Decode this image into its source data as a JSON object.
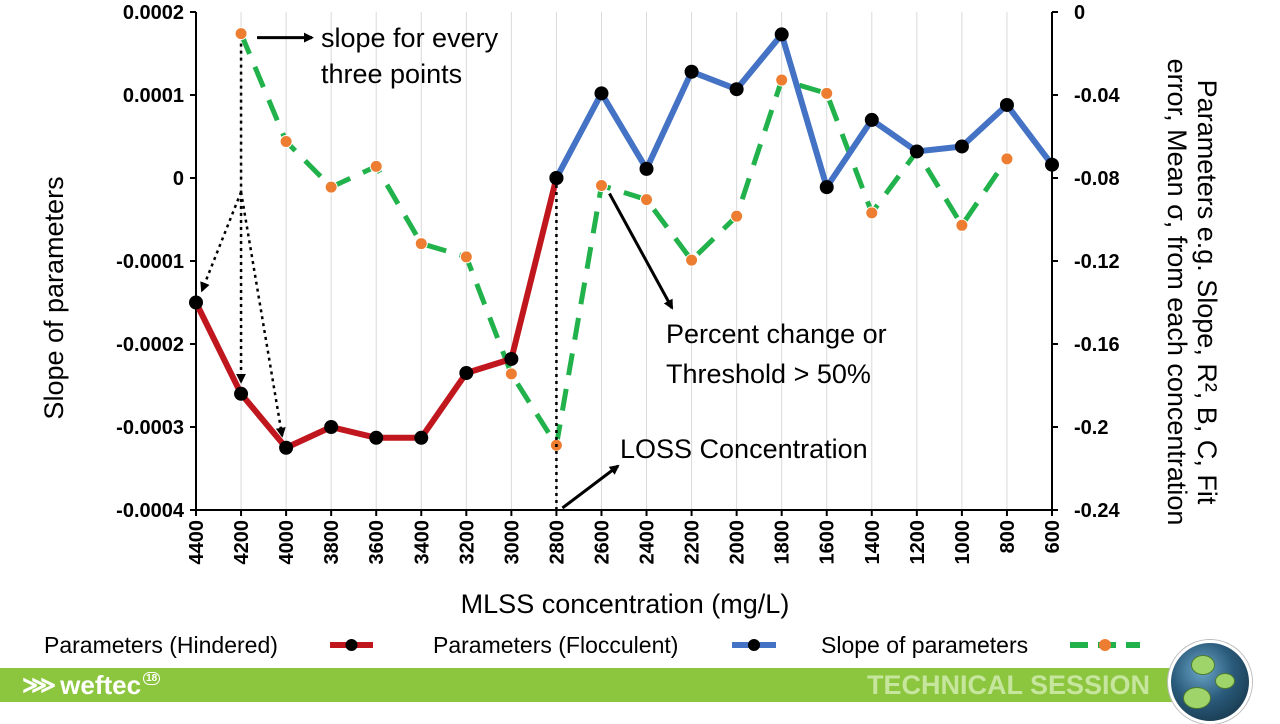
{
  "chart_data": {
    "type": "line",
    "x": [
      4400,
      4200,
      4000,
      3800,
      3600,
      3400,
      3200,
      3000,
      2800,
      2600,
      2400,
      2200,
      2000,
      1800,
      1600,
      1400,
      1200,
      1000,
      800,
      600
    ],
    "x_tick_labels": [
      "4400",
      "4200",
      "4000",
      "3800",
      "3600",
      "3400",
      "3200",
      "3000",
      "2800",
      "2600",
      "2400",
      "2200",
      "2000",
      "1800",
      "1600",
      "1400",
      "1200",
      "1000",
      "800",
      "600"
    ],
    "xlabel": "MLSS concentration (mg/L)",
    "ylabel": "Slope of parameters",
    "ylabel_right": "Parameters e.g. Slope, R², B, C, Fit error, Mean σ, from each concentration",
    "ylim": [
      -0.0004,
      0.0002
    ],
    "ylim_right": [
      -0.24,
      0
    ],
    "y_tick_labels": [
      "0.0002",
      "0.0001",
      "0",
      "-0.0001",
      "-0.0002",
      "-0.0003",
      "-0.0004"
    ],
    "y_right_tick_labels": [
      "0",
      "-0.04",
      "-0.08",
      "-0.12",
      "-0.16",
      "-0.2",
      "-0.24"
    ],
    "series": [
      {
        "name": "Parameters (Hindered)",
        "axis": "left",
        "color": "#c0161d",
        "x": [
          4400,
          4200,
          4000,
          3800,
          3600,
          3400,
          3200,
          3000,
          2800
        ],
        "values": [
          -0.00015,
          -0.00026,
          -0.000325,
          -0.0003,
          -0.000313,
          -0.000313,
          -0.000235,
          -0.000218,
          0.0
        ]
      },
      {
        "name": "Parameters (Flocculent)",
        "axis": "left",
        "color": "#4472c4",
        "x": [
          2800,
          2600,
          2400,
          2200,
          2000,
          1800,
          1600,
          1400,
          1200,
          1000,
          800,
          600
        ],
        "values": [
          0.0,
          0.000102,
          1.1e-05,
          0.000128,
          0.000107,
          0.000173,
          -1.1e-05,
          7e-05,
          3.2e-05,
          3.8e-05,
          8.8e-05,
          1.6e-05
        ]
      },
      {
        "name": "Slope of parameters",
        "axis": "left",
        "color": "#21b24b",
        "marker_color": "#ed7d31",
        "x": [
          4200,
          4000,
          3800,
          3600,
          3400,
          3200,
          3000,
          2800,
          2600,
          2400,
          2200,
          2000,
          1800,
          1600,
          1400,
          1200,
          1000,
          800
        ],
        "values": [
          0.000174,
          4.4e-05,
          -1.1e-05,
          1.4e-05,
          -7.9e-05,
          -9.5e-05,
          -0.000236,
          -0.000322,
          -9e-06,
          -2.6e-05,
          -9.9e-05,
          -4.6e-05,
          0.000118,
          0.000102,
          -4.2e-05,
          3.2e-05,
          -5.7e-05,
          2.3e-05
        ]
      }
    ],
    "annotations": {
      "slope_note_line1": "slope for every",
      "slope_note_line2": "three points",
      "threshold_line1": "Percent change or",
      "threshold_line2": "Threshold > 50%",
      "loss": "LOSS Concentration"
    },
    "legend_position": "bottom"
  },
  "footer": {
    "logo_text": "weftec",
    "logo_badge": "18",
    "session_label": "TECHNICAL SESSION",
    "bar_color": "#8cc63f"
  }
}
